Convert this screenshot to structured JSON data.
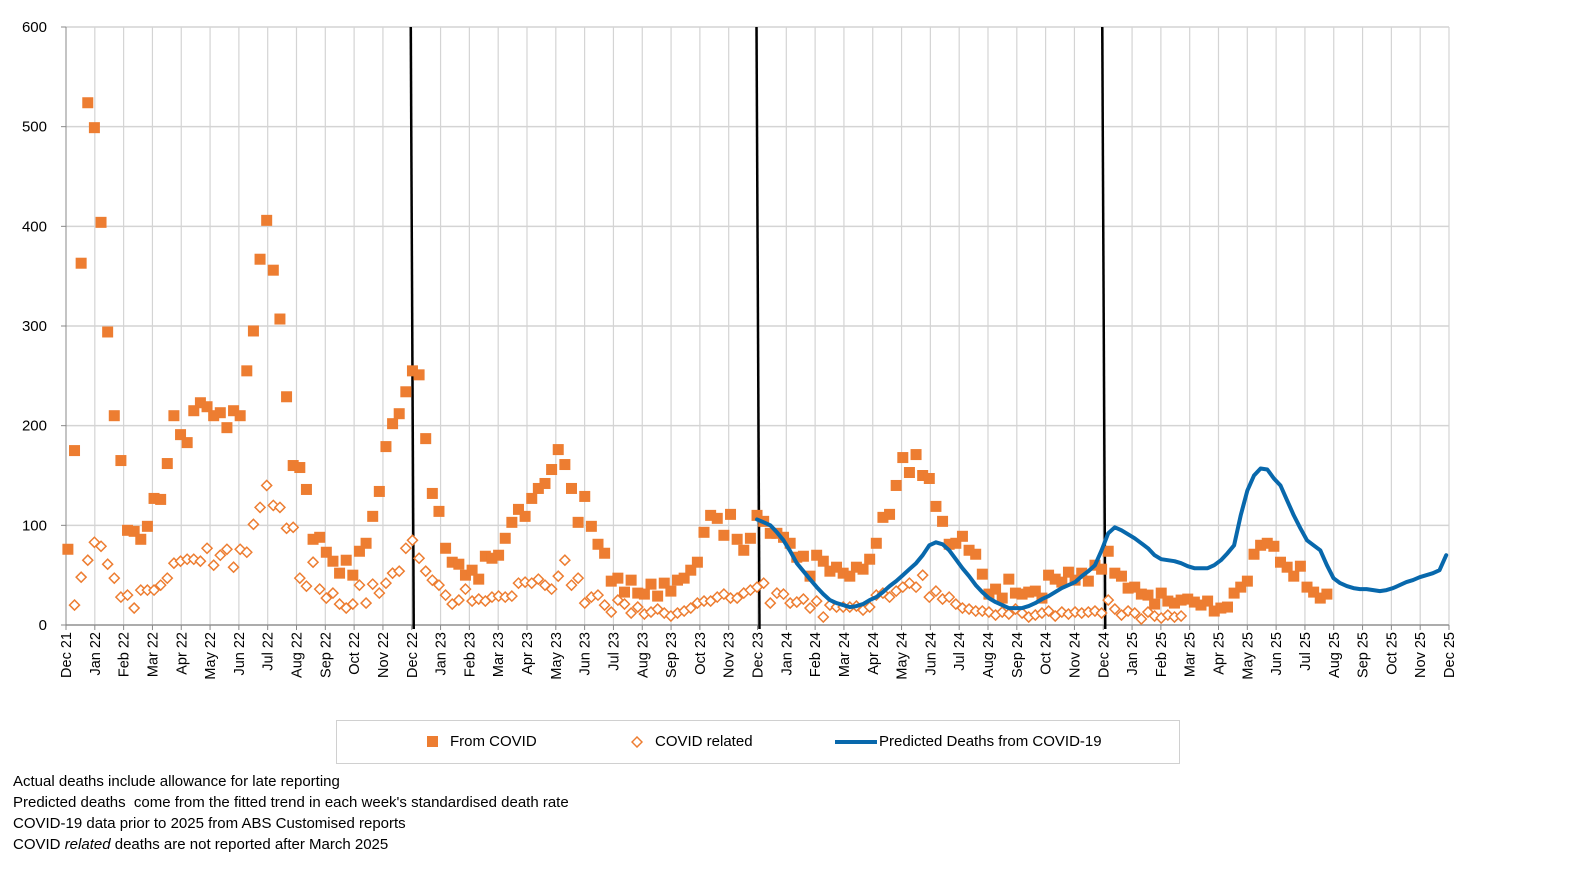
{
  "chart_data": {
    "type": "scatter",
    "title": "",
    "xlabel": "",
    "ylabel": "",
    "ylim": [
      0,
      600
    ],
    "y_ticks": [
      0,
      100,
      200,
      300,
      400,
      500,
      600
    ],
    "xlim": [
      "2021-12-01",
      "2025-12-01"
    ],
    "grid": true,
    "legend_placement": "bottom",
    "x_tick_labels": [
      "Dec 21",
      "Jan 22",
      "Feb 22",
      "Mar 22",
      "Apr 22",
      "May 22",
      "Jun 22",
      "Jul 22",
      "Aug 22",
      "Sep 22",
      "Oct 22",
      "Nov 22",
      "Dec 22",
      "Jan 23",
      "Feb 23",
      "Mar 23",
      "Apr 23",
      "May 23",
      "Jun 23",
      "Jul 23",
      "Aug 23",
      "Sep 23",
      "Oct 23",
      "Nov 23",
      "Dec 23",
      "Jan 24",
      "Feb 24",
      "Mar 24",
      "Apr 24",
      "May 24",
      "Jun 24",
      "Jul 24",
      "Aug 24",
      "Sep 24",
      "Oct 24",
      "Nov 24",
      "Dec 24",
      "Jan 25",
      "Feb 25",
      "Mar 25",
      "Apr 25",
      "May 25",
      "Jun 25",
      "Jul 25",
      "Aug 25",
      "Sep 25",
      "Oct 25",
      "Nov 25",
      "Dec 25"
    ],
    "vertical_markers": [
      "Dec 22",
      "Dec 23",
      "Dec 24"
    ],
    "x": [
      "2021-12-03",
      "2021-12-10",
      "2021-12-17",
      "2021-12-24",
      "2021-12-31",
      "2022-01-07",
      "2022-01-14",
      "2022-01-21",
      "2022-01-28",
      "2022-02-04",
      "2022-02-11",
      "2022-02-18",
      "2022-02-25",
      "2022-03-04",
      "2022-03-11",
      "2022-03-18",
      "2022-03-25",
      "2022-04-01",
      "2022-04-08",
      "2022-04-15",
      "2022-04-22",
      "2022-04-29",
      "2022-05-06",
      "2022-05-13",
      "2022-05-20",
      "2022-05-27",
      "2022-06-03",
      "2022-06-10",
      "2022-06-17",
      "2022-06-24",
      "2022-07-01",
      "2022-07-08",
      "2022-07-15",
      "2022-07-22",
      "2022-07-29",
      "2022-08-05",
      "2022-08-12",
      "2022-08-19",
      "2022-08-26",
      "2022-09-02",
      "2022-09-09",
      "2022-09-16",
      "2022-09-23",
      "2022-09-30",
      "2022-10-07",
      "2022-10-14",
      "2022-10-21",
      "2022-10-28",
      "2022-11-04",
      "2022-11-11",
      "2022-11-18",
      "2022-11-25",
      "2022-12-02",
      "2022-12-09",
      "2022-12-16",
      "2022-12-23",
      "2022-12-30",
      "2023-01-06",
      "2023-01-13",
      "2023-01-20",
      "2023-01-27",
      "2023-02-03",
      "2023-02-10",
      "2023-02-17",
      "2023-02-24",
      "2023-03-03",
      "2023-03-10",
      "2023-03-17",
      "2023-03-24",
      "2023-03-31",
      "2023-04-07",
      "2023-04-14",
      "2023-04-21",
      "2023-04-28",
      "2023-05-05",
      "2023-05-12",
      "2023-05-19",
      "2023-05-26",
      "2023-06-02",
      "2023-06-09",
      "2023-06-16",
      "2023-06-23",
      "2023-06-30",
      "2023-07-07",
      "2023-07-14",
      "2023-07-21",
      "2023-07-28",
      "2023-08-04",
      "2023-08-11",
      "2023-08-18",
      "2023-08-25",
      "2023-09-01",
      "2023-09-08",
      "2023-09-15",
      "2023-09-22",
      "2023-09-29",
      "2023-10-06",
      "2023-10-13",
      "2023-10-20",
      "2023-10-27",
      "2023-11-03",
      "2023-11-10",
      "2023-11-17",
      "2023-11-24",
      "2023-12-01",
      "2023-12-08",
      "2023-12-15",
      "2023-12-22",
      "2023-12-29",
      "2024-01-05",
      "2024-01-12",
      "2024-01-19",
      "2024-01-26",
      "2024-02-02",
      "2024-02-09",
      "2024-02-16",
      "2024-02-23",
      "2024-03-01",
      "2024-03-08",
      "2024-03-15",
      "2024-03-22",
      "2024-03-29",
      "2024-04-05",
      "2024-04-12",
      "2024-04-19",
      "2024-04-26",
      "2024-05-03",
      "2024-05-10",
      "2024-05-17",
      "2024-05-24",
      "2024-05-31",
      "2024-06-07",
      "2024-06-14",
      "2024-06-21",
      "2024-06-28",
      "2024-07-05",
      "2024-07-12",
      "2024-07-19",
      "2024-07-26",
      "2024-08-02",
      "2024-08-09",
      "2024-08-16",
      "2024-08-23",
      "2024-08-30",
      "2024-09-06",
      "2024-09-13",
      "2024-09-20",
      "2024-09-27",
      "2024-10-04",
      "2024-10-11",
      "2024-10-18",
      "2024-10-25",
      "2024-11-01",
      "2024-11-08",
      "2024-11-15",
      "2024-11-22",
      "2024-11-29",
      "2024-12-06",
      "2024-12-13",
      "2024-12-20",
      "2024-12-27",
      "2025-01-03",
      "2025-01-10",
      "2025-01-17",
      "2025-01-24",
      "2025-01-31",
      "2025-02-07",
      "2025-02-14",
      "2025-02-21",
      "2025-02-28",
      "2025-03-07",
      "2025-03-14",
      "2025-03-21",
      "2025-03-28",
      "2025-04-04",
      "2025-04-11",
      "2025-04-18",
      "2025-04-25",
      "2025-05-02",
      "2025-05-09",
      "2025-05-16",
      "2025-05-23",
      "2025-05-30",
      "2025-06-06",
      "2025-06-13",
      "2025-06-20",
      "2025-06-27",
      "2025-07-04",
      "2025-07-11",
      "2025-07-18",
      "2025-07-25",
      "2025-08-01",
      "2025-08-08",
      "2025-08-15",
      "2025-08-22",
      "2025-08-29",
      "2025-09-05",
      "2025-09-12",
      "2025-09-19",
      "2025-09-26",
      "2025-10-03",
      "2025-10-10",
      "2025-10-17",
      "2025-10-24",
      "2025-10-31",
      "2025-11-07",
      "2025-11-14",
      "2025-11-21",
      "2025-11-28",
      "2025-12-05"
    ],
    "series": [
      {
        "name": "From COVID",
        "marker": "filled-square",
        "color": "#ED7D31",
        "values": [
          76,
          175,
          363,
          524,
          499,
          404,
          294,
          210,
          165,
          95,
          94,
          86,
          99,
          127,
          126,
          162,
          210,
          191,
          183,
          215,
          223,
          219,
          210,
          213,
          198,
          215,
          210,
          255,
          295,
          367,
          406,
          356,
          307,
          229,
          160,
          158,
          136,
          86,
          88,
          73,
          64,
          52,
          65,
          50,
          74,
          82,
          109,
          134,
          179,
          202,
          212,
          234,
          255,
          251,
          187,
          132,
          114,
          77,
          63,
          61,
          50,
          55,
          46,
          69,
          67,
          70,
          87,
          103,
          116,
          109,
          127,
          137,
          142,
          156,
          176,
          161,
          137,
          103,
          129,
          99,
          81,
          72,
          44,
          47,
          33,
          45,
          32,
          31,
          41,
          29,
          42,
          34,
          45,
          47,
          55,
          63,
          93,
          110,
          107,
          90,
          111,
          86,
          75,
          87,
          110,
          104,
          92,
          92,
          88,
          82,
          68,
          69,
          49,
          70,
          64,
          54,
          58,
          52,
          49,
          58,
          56,
          66,
          82,
          108,
          111,
          140,
          168,
          153,
          171,
          150,
          147,
          119,
          104,
          81,
          82,
          89,
          75,
          71,
          51,
          31,
          36,
          27,
          46,
          32,
          31,
          33,
          34,
          27,
          50,
          46,
          43,
          53,
          45,
          52,
          44,
          60,
          56,
          74,
          52,
          49,
          37,
          38,
          31,
          30,
          21,
          32,
          24,
          22,
          25,
          26,
          23,
          20,
          24,
          14,
          17,
          18,
          32,
          38,
          44,
          71,
          80,
          82,
          79,
          63,
          58,
          49,
          59,
          38,
          33,
          27,
          31
        ]
      },
      {
        "name": "COVID related",
        "marker": "hollow-diamond",
        "color": "#ED7D31",
        "values": [
          null,
          20,
          48,
          65,
          83,
          79,
          61,
          47,
          28,
          30,
          17,
          35,
          35,
          35,
          40,
          47,
          62,
          64,
          66,
          66,
          64,
          77,
          60,
          70,
          76,
          58,
          76,
          73,
          101,
          118,
          140,
          120,
          118,
          97,
          98,
          47,
          39,
          63,
          36,
          27,
          32,
          21,
          17,
          21,
          40,
          22,
          41,
          32,
          42,
          52,
          54,
          77,
          85,
          67,
          54,
          45,
          40,
          30,
          21,
          25,
          36,
          24,
          26,
          24,
          28,
          29,
          28,
          29,
          42,
          43,
          42,
          46,
          40,
          36,
          49,
          65,
          40,
          47,
          22,
          28,
          30,
          20,
          13,
          25,
          21,
          12,
          18,
          11,
          13,
          16,
          12,
          9,
          12,
          14,
          17,
          22,
          24,
          24,
          28,
          31,
          27,
          27,
          32,
          35,
          38,
          42,
          22,
          32,
          31,
          22,
          23,
          26,
          17,
          24,
          8,
          20,
          18,
          18,
          18,
          19,
          15,
          18,
          30,
          32,
          28,
          34,
          38,
          42,
          38,
          50,
          28,
          34,
          26,
          28,
          21,
          17,
          16,
          14,
          14,
          13,
          10,
          13,
          11,
          16,
          12,
          8,
          10,
          12,
          14,
          9,
          13,
          11,
          13,
          12,
          13,
          14,
          12,
          25,
          16,
          10,
          14,
          12,
          6,
          13,
          9,
          7,
          10,
          8,
          9
        ]
      },
      {
        "name": "Predicted Deaths from COVID-19",
        "marker": "line",
        "color": "#0868AC",
        "values": [
          null,
          null,
          null,
          null,
          null,
          null,
          null,
          null,
          null,
          null,
          null,
          null,
          null,
          null,
          null,
          null,
          null,
          null,
          null,
          null,
          null,
          null,
          null,
          null,
          null,
          null,
          null,
          null,
          null,
          null,
          null,
          null,
          null,
          null,
          null,
          null,
          null,
          null,
          null,
          null,
          null,
          null,
          null,
          null,
          null,
          null,
          null,
          null,
          null,
          null,
          null,
          null,
          null,
          null,
          null,
          null,
          null,
          null,
          null,
          null,
          null,
          null,
          null,
          null,
          null,
          null,
          null,
          null,
          null,
          null,
          null,
          null,
          null,
          null,
          null,
          null,
          null,
          null,
          null,
          null,
          null,
          null,
          null,
          null,
          null,
          null,
          null,
          null,
          null,
          null,
          null,
          null,
          null,
          null,
          null,
          null,
          null,
          null,
          null,
          null,
          null,
          null,
          null,
          null,
          106,
          103,
          100,
          93,
          85,
          74,
          62,
          54,
          46,
          38,
          31,
          25,
          22,
          20,
          18,
          19,
          21,
          25,
          28,
          33,
          39,
          44,
          50,
          56,
          62,
          70,
          80,
          83,
          81,
          75,
          66,
          57,
          49,
          40,
          33,
          27,
          23,
          20,
          17,
          17,
          17,
          19,
          22,
          26,
          29,
          33,
          37,
          40,
          43,
          49,
          54,
          60,
          75,
          92,
          98,
          95,
          91,
          87,
          82,
          77,
          70,
          66,
          65,
          64,
          62,
          59,
          57,
          57,
          57,
          60,
          65,
          72,
          80,
          110,
          135,
          150,
          157,
          156,
          147,
          140,
          125,
          110,
          97,
          85,
          80,
          75,
          60,
          47,
          42,
          39,
          37,
          36,
          36,
          35,
          34,
          35,
          37,
          40,
          43,
          45,
          48,
          50,
          52,
          55,
          70
        ]
      }
    ]
  },
  "legend": {
    "items": [
      "From COVID",
      "COVID related",
      "Predicted Deaths from COVID-19"
    ]
  },
  "notes": {
    "line1": "Actual deaths include allowance for late reporting",
    "line2": "Predicted deaths  come from the fitted trend in each week's standardised death rate",
    "line3": "COVID-19 data prior to 2025 from ABS Customised reports",
    "line4_pre": "COVID ",
    "line4_italic": "related",
    "line4_post": " deaths are not reported after March 2025"
  }
}
